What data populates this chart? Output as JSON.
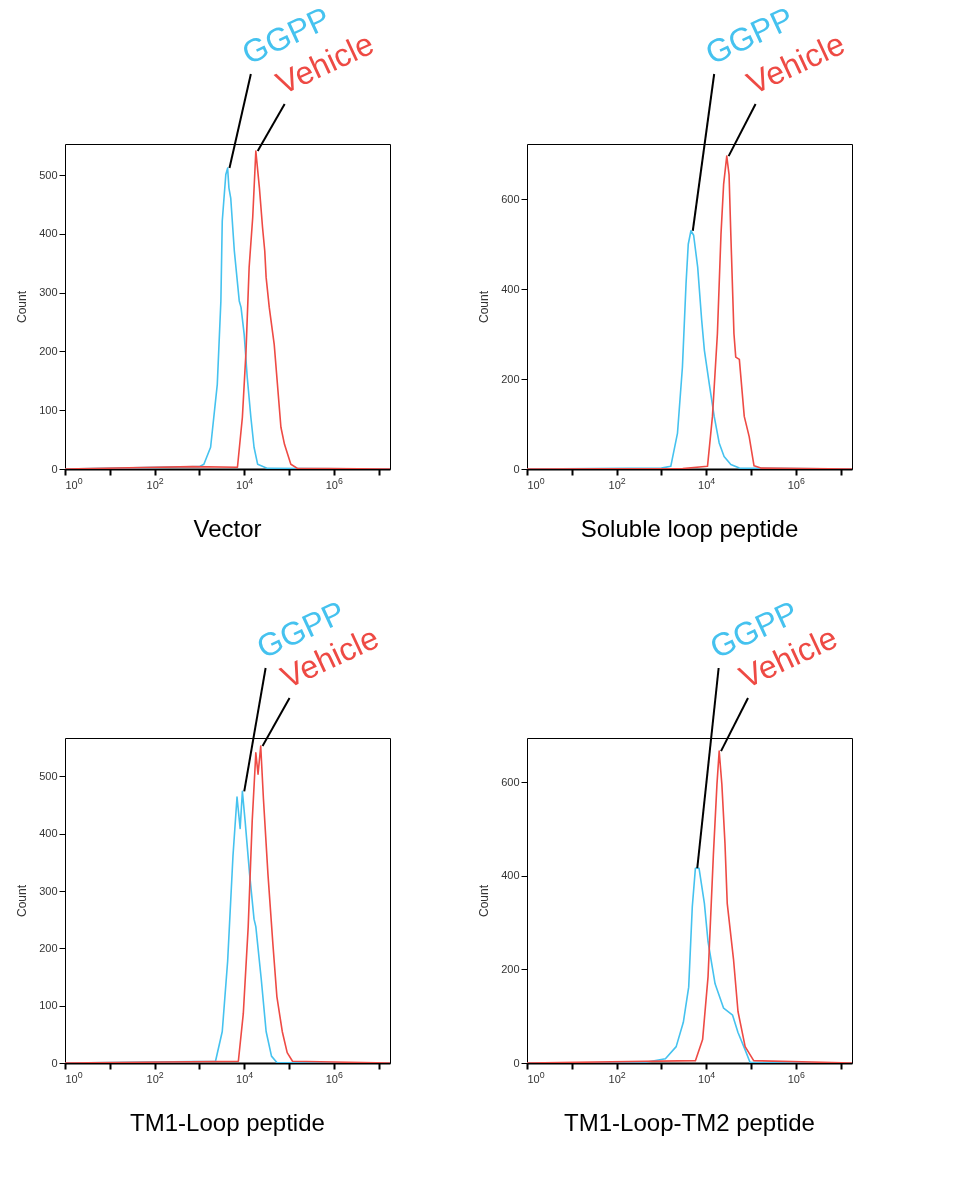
{
  "chart_data": [
    {
      "type": "line",
      "title": "Vector",
      "ylabel": "Count",
      "log": "x",
      "grid": false,
      "xlim": [
        1,
        18000000
      ],
      "ylim": [
        0,
        553
      ],
      "xticks": [
        {
          "value": 1,
          "label": "10$^{0}$"
        },
        {
          "value": 10,
          "label": null
        },
        {
          "value": 100,
          "label": "10$^{2}$"
        },
        {
          "value": 1000,
          "label": null
        },
        {
          "value": 10000,
          "label": "10$^{4}$"
        },
        {
          "value": 100000,
          "label": null
        },
        {
          "value": 1000000,
          "label": "10$^{6}$"
        },
        {
          "value": 10000000,
          "label": null
        }
      ],
      "yticks": [
        0,
        100,
        200,
        300,
        400,
        500
      ],
      "series": [
        {
          "name": "GGPP",
          "color": "#45c2ef",
          "x": [
            1,
            1000,
            1260,
            1780,
            2510,
            3020,
            3240,
            3890,
            4270,
            4570,
            5010,
            6030,
            7760,
            8510,
            10000,
            11700,
            14100,
            16600,
            20000,
            33100,
            18000000
          ],
          "values": [
            0,
            4,
            8,
            37,
            144,
            286,
            422,
            501,
            512,
            478,
            461,
            371,
            286,
            275,
            229,
            156,
            88,
            37,
            8,
            1,
            0
          ]
        },
        {
          "name": "Vehicle",
          "color": "#ee4a44",
          "x": [
            1,
            700,
            7080,
            9120,
            11000,
            12900,
            15500,
            18200,
            21900,
            25700,
            28800,
            30900,
            36300,
            46800,
            66100,
            79400,
            110000,
            155000,
            18000000
          ],
          "values": [
            0,
            4,
            3,
            88,
            201,
            343,
            428,
            541,
            478,
            411,
            371,
            326,
            275,
            212,
            71,
            42,
            8,
            1,
            0
          ]
        }
      ]
    },
    {
      "type": "line",
      "title": "Soluble loop peptide",
      "ylabel": "Count",
      "log": "x",
      "grid": false,
      "xlim": [
        1,
        18000000
      ],
      "ylim": [
        0,
        723
      ],
      "xticks": [
        {
          "value": 1,
          "label": "10$^{0}$"
        },
        {
          "value": 10,
          "label": null
        },
        {
          "value": 100,
          "label": "10$^{2}$"
        },
        {
          "value": 1000,
          "label": null
        },
        {
          "value": 10000,
          "label": "10$^{4}$"
        },
        {
          "value": 100000,
          "label": null
        },
        {
          "value": 1000000,
          "label": "10$^{6}$"
        },
        {
          "value": 10000000,
          "label": null
        }
      ],
      "yticks": [
        0,
        200,
        400,
        600
      ],
      "series": [
        {
          "name": "GGPP",
          "color": "#45c2ef",
          "x": [
            1,
            1000,
            1620,
            2290,
            2950,
            3550,
            3980,
            4570,
            5250,
            6460,
            7940,
            9120,
            11700,
            15100,
            19500,
            25100,
            35500,
            55000,
            18000000
          ],
          "values": [
            0,
            2,
            6,
            80,
            227,
            412,
            500,
            530,
            520,
            449,
            331,
            264,
            190,
            117,
            58,
            28,
            10,
            2,
            0
          ]
        },
        {
          "name": "Vehicle",
          "color": "#ee4a44",
          "x": [
            1,
            3000,
            10700,
            13800,
            17800,
            21400,
            24500,
            28800,
            32400,
            35500,
            41700,
            45700,
            55000,
            70800,
            91200,
            117000,
            166000,
            18000000
          ],
          "values": [
            0,
            1,
            6,
            117,
            301,
            522,
            633,
            696,
            655,
            522,
            301,
            249,
            244,
            117,
            72,
            7,
            2,
            0
          ]
        }
      ]
    },
    {
      "type": "line",
      "title": "TM1-Loop peptide",
      "ylabel": "Count",
      "log": "x",
      "grid": false,
      "xlim": [
        1,
        18000000
      ],
      "ylim": [
        0,
        567
      ],
      "xticks": [
        {
          "value": 1,
          "label": "10$^{0}$"
        },
        {
          "value": 10,
          "label": null
        },
        {
          "value": 100,
          "label": "10$^{2}$"
        },
        {
          "value": 1000,
          "label": null
        },
        {
          "value": 10000,
          "label": "10$^{4}$"
        },
        {
          "value": 100000,
          "label": null
        },
        {
          "value": 1000000,
          "label": "10$^{6}$"
        },
        {
          "value": 10000000,
          "label": null
        }
      ],
      "yticks": [
        0,
        100,
        200,
        300,
        400,
        500
      ],
      "series": [
        {
          "name": "GGPP",
          "color": "#45c2ef",
          "x": [
            1,
            2290,
            3240,
            4270,
            5620,
            6920,
            8130,
            9120,
            10500,
            13200,
            16600,
            18200,
            24000,
            30900,
            40700,
            53700,
            18000000
          ],
          "values": [
            0,
            3,
            55,
            177,
            361,
            464,
            409,
            474,
            422,
            330,
            251,
            238,
            147,
            55,
            12,
            1,
            0
          ]
        },
        {
          "name": "Vehicle",
          "color": "#ee4a44",
          "x": [
            1,
            7410,
            9550,
            12300,
            15100,
            18200,
            20400,
            23400,
            26900,
            33900,
            43700,
            53700,
            70800,
            91200,
            120000,
            18000000
          ],
          "values": [
            0,
            3,
            86,
            238,
            422,
            541,
            504,
            553,
            461,
            330,
            208,
            116,
            55,
            18,
            3,
            0
          ]
        }
      ]
    },
    {
      "type": "line",
      "title": "TM1-Loop-TM2 peptide",
      "ylabel": "Count",
      "log": "x",
      "grid": false,
      "xlim": [
        1,
        18000000
      ],
      "ylim": [
        0,
        694
      ],
      "xticks": [
        {
          "value": 1,
          "label": "10$^{0}$"
        },
        {
          "value": 10,
          "label": null
        },
        {
          "value": 100,
          "label": "10$^{2}$"
        },
        {
          "value": 1000,
          "label": null
        },
        {
          "value": 10000,
          "label": "10$^{4}$"
        },
        {
          "value": 100000,
          "label": null
        },
        {
          "value": 1000000,
          "label": "10$^{6}$"
        },
        {
          "value": 10000000,
          "label": null
        }
      ],
      "yticks": [
        0,
        200,
        400,
        600
      ],
      "series": [
        {
          "name": "GGPP",
          "color": "#45c2ef",
          "x": [
            1,
            417,
            1230,
            2140,
            3090,
            4070,
            4900,
            5750,
            6920,
            9120,
            11000,
            15800,
            24500,
            38900,
            51300,
            74100,
            95500,
            18000000
          ],
          "values": [
            0,
            1,
            9,
            35,
            87,
            162,
            334,
            416,
            416,
            341,
            259,
            169,
            117,
            102,
            65,
            28,
            1,
            0
          ]
        },
        {
          "name": "Vehicle",
          "color": "#ee4a44",
          "x": [
            1,
            5750,
            8320,
            11000,
            14500,
            17400,
            19500,
            22400,
            26300,
            29500,
            40700,
            51300,
            74100,
            115000,
            18000000
          ],
          "values": [
            0,
            5,
            50,
            184,
            446,
            595,
            666,
            595,
            468,
            341,
            222,
            110,
            35,
            5,
            0
          ]
        }
      ]
    }
  ]
}
